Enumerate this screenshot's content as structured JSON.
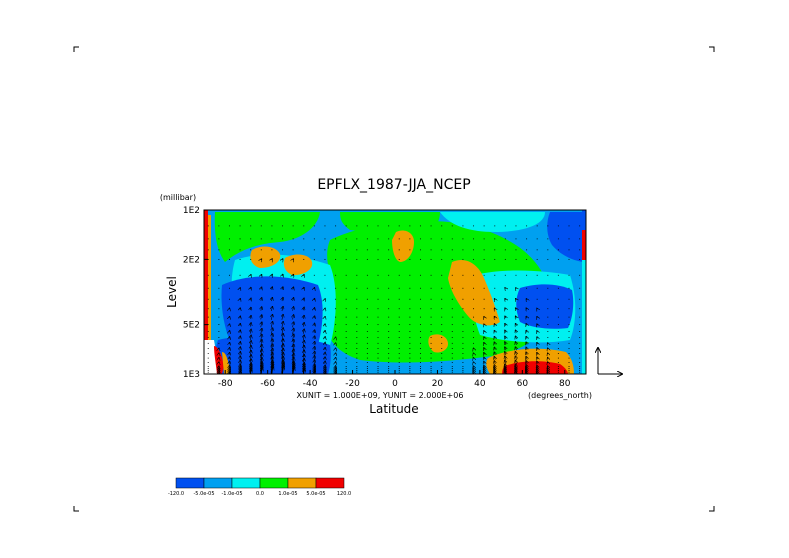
{
  "chart_data": {
    "type": "heatmap",
    "title": "EPFLX_1987-JJA_NCEP",
    "xlabel": "Latitude",
    "ylabel": "Level",
    "x_units": "(degrees_north)",
    "y_units": "(millibar)",
    "xlim": [
      -90,
      90
    ],
    "ylim": [
      1000,
      100
    ],
    "y_scale": "log",
    "x_ticks": [
      -80,
      -60,
      -40,
      -20,
      0,
      20,
      40,
      60,
      80
    ],
    "x_tick_labels": [
      "-80",
      "-60",
      "-40",
      "-20",
      "0",
      "20",
      "40",
      "60",
      "80"
    ],
    "y_ticks": [
      100,
      200,
      500,
      1000
    ],
    "y_tick_labels": [
      "1E2",
      "2E2",
      "5E2",
      "1E3"
    ],
    "vector_unit_text": "XUNIT = 1.000E+09, YUNIT = 2.000E+06",
    "colorbar": {
      "colors": [
        "#0050f0",
        "#00a0f0",
        "#00f0f0",
        "#00f000",
        "#f0a000",
        "#f00000"
      ],
      "labels": [
        "-120.0",
        "-5.0e-05",
        "-1.0e-05",
        "0.0",
        "1.0e-05",
        "5.0e-05",
        "120.0"
      ]
    },
    "colors": {
      "strong_negative": "#0050f0",
      "negative": "#00a0f0",
      "weak_negative": "#00f0f0",
      "weak_positive": "#00f000",
      "positive": "#f0a000",
      "strong_positive": "#f00000"
    }
  }
}
